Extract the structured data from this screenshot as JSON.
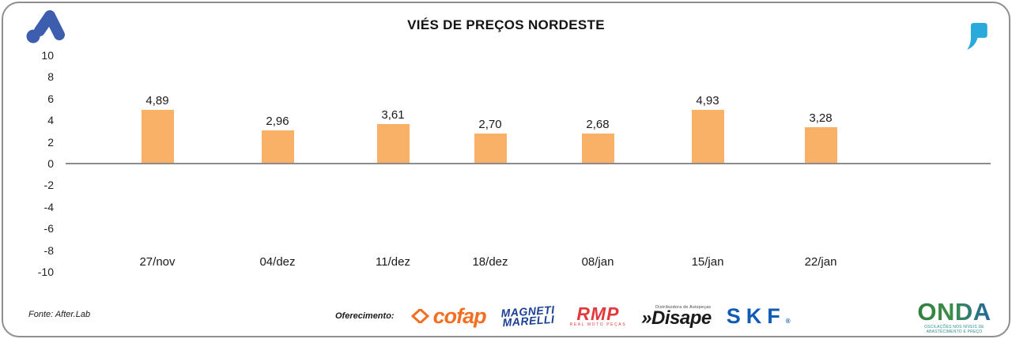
{
  "title": "VIÉS DE PREÇOS NORDESTE",
  "brand": {
    "logo_color": "#3D5EAE",
    "quote_color": "#29A9DC"
  },
  "chart_data": {
    "type": "bar",
    "title": "VIÉS DE PREÇOS NORDESTE",
    "categories": [
      "27/nov",
      "04/dez",
      "11/dez",
      "18/dez",
      "08/jan",
      "15/jan",
      "22/jan"
    ],
    "values": [
      4.89,
      2.96,
      3.61,
      2.7,
      2.68,
      4.93,
      3.28
    ],
    "value_labels": [
      "4,89",
      "2,96",
      "3,61",
      "2,70",
      "2,68",
      "4,93",
      "3,28"
    ],
    "xlabel": "",
    "ylabel": "",
    "ylim": [
      -10,
      10
    ],
    "y_ticks": [
      "10",
      "8",
      "6",
      "4",
      "2",
      "0",
      "-2",
      "-4",
      "-6",
      "-8",
      "-10"
    ],
    "bar_color": "#F9B168",
    "baseline_color": "#8C8C8C",
    "grid": "zero-baseline-only",
    "legend_position": "none"
  },
  "footer": {
    "source": "Fonte: After.Lab",
    "sponsor_label": "Oferecimento:",
    "sponsors": {
      "cofap": {
        "name": "cofap",
        "color": "#F26F21"
      },
      "magneti": {
        "line1": "MAGNETI",
        "line2": "MARELLI",
        "color": "#1B3F94"
      },
      "rmp": {
        "name": "RMP",
        "subtitle": "REAL MOTO PEÇAS",
        "color": "#E23A3C"
      },
      "disape": {
        "topline": "Distribuidora de Autopeças",
        "name": "»Disape",
        "color": "#1A1A1A"
      },
      "skf": {
        "name": "SKF",
        "reg": "®",
        "color": "#0F5BB5"
      }
    },
    "onda": {
      "name": "ONDA",
      "tagline": "OSCILAÇÕES NOS NÍVEIS DE ABASTECIMENTO E PREÇO",
      "gradient_start": "#2F7D3B",
      "gradient_end": "#1E64A8"
    }
  }
}
